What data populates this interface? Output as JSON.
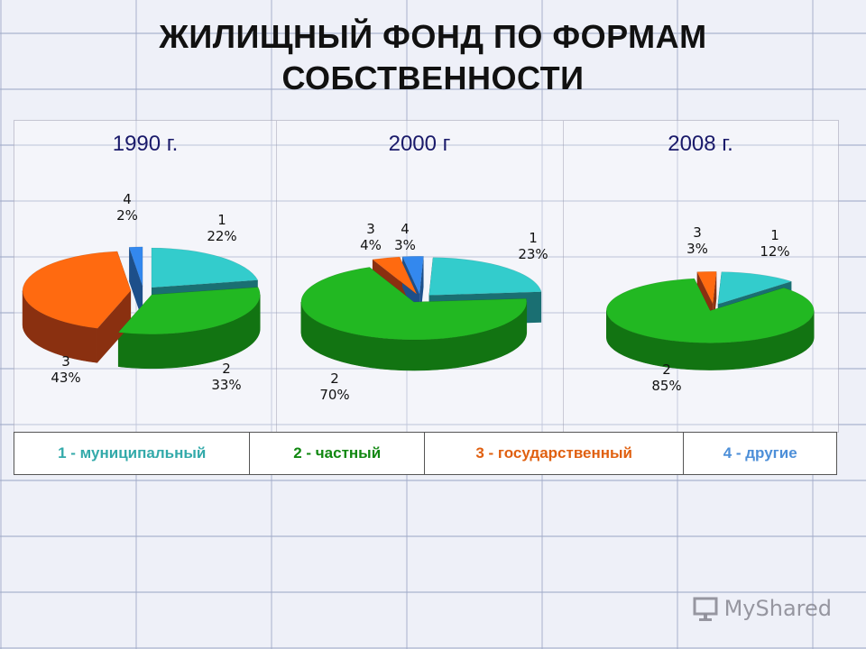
{
  "title_line1": "ЖИЛИЩНЫЙ ФОНД ПО ФОРМАМ",
  "title_line2": "СОБСТВЕННОСТИ",
  "colors": {
    "1": {
      "top": "#33cccc",
      "side": "#1a6f72"
    },
    "2": {
      "top": "#22b822",
      "side": "#127412"
    },
    "3": {
      "top": "#ff6a10",
      "side": "#8a3010"
    },
    "4": {
      "top": "#3388ee",
      "side": "#1d4f8a"
    }
  },
  "legend": [
    {
      "label": "1 - муниципальный",
      "color": "#33aaaa"
    },
    {
      "label": "2 - частный",
      "color": "#118811"
    },
    {
      "label": "3 - государственный",
      "color": "#e06010"
    },
    {
      "label": "4 - другие",
      "color": "#4d8fd8"
    }
  ],
  "watermark": "MyShared",
  "chart_data": [
    {
      "type": "pie",
      "title": "1990 г.",
      "slices": [
        {
          "category": "1",
          "value": 22,
          "label": "22%"
        },
        {
          "category": "2",
          "value": 33,
          "label": "33%"
        },
        {
          "category": "3",
          "value": 43,
          "label": "43%"
        },
        {
          "category": "4",
          "value": 2,
          "label": "2%"
        }
      ]
    },
    {
      "type": "pie",
      "title": "2000 г",
      "slices": [
        {
          "category": "1",
          "value": 23,
          "label": "23%"
        },
        {
          "category": "2",
          "value": 70,
          "label": "70%"
        },
        {
          "category": "3",
          "value": 4,
          "label": "4%"
        },
        {
          "category": "4",
          "value": 3,
          "label": "3%"
        }
      ]
    },
    {
      "type": "pie",
      "title": "2008 г.",
      "slices": [
        {
          "category": "1",
          "value": 12,
          "label": "12%"
        },
        {
          "category": "2",
          "value": 85,
          "label": "85%"
        },
        {
          "category": "3",
          "value": 3,
          "label": "3%"
        }
      ]
    }
  ]
}
